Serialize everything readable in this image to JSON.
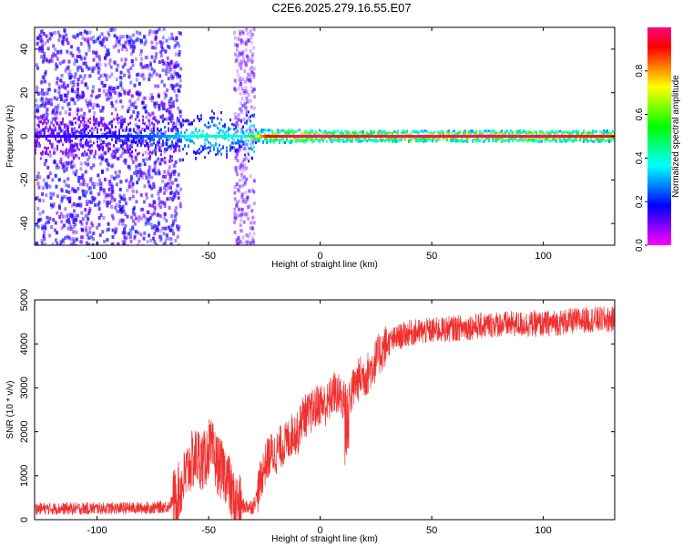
{
  "title": "C2E6.2025.279.16.55.E07",
  "chart_data": [
    {
      "type": "heatmap",
      "xlabel": "Height of straight line (km)",
      "ylabel": "Frequency (Hz)",
      "xlim": [
        -128,
        132
      ],
      "ylim": [
        -50,
        50
      ],
      "xticks": [
        -100,
        -50,
        0,
        50,
        100
      ],
      "yticks": [
        -40,
        -20,
        0,
        20,
        40
      ],
      "colorbar": {
        "label": "Normalized spectral amplitude",
        "range": [
          0.0,
          1.0
        ],
        "ticks": [
          0.0,
          0.2,
          0.4,
          0.6,
          0.8
        ],
        "colormap": [
          "#ff00ff",
          "#7f00ff",
          "#0000ff",
          "#0080ff",
          "#00ffff",
          "#00ff80",
          "#00ff00",
          "#80ff00",
          "#ffff00",
          "#ff8000",
          "#ff0000",
          "#ff0080"
        ]
      },
      "regions": [
        {
          "x": [
            -128,
            -65
          ],
          "description_level": 0.1
        },
        {
          "x": [
            -65,
            -30
          ],
          "description_level": 0.45
        },
        {
          "x": [
            -30,
            132
          ],
          "description_level": 0.9
        }
      ],
      "ridge_amplitude": [
        {
          "x": -120,
          "amp": 0.15
        },
        {
          "x": -100,
          "amp": 0.2
        },
        {
          "x": -80,
          "amp": 0.25
        },
        {
          "x": -65,
          "amp": 0.35
        },
        {
          "x": -55,
          "amp": 0.45
        },
        {
          "x": -45,
          "amp": 0.45
        },
        {
          "x": -35,
          "amp": 0.4
        },
        {
          "x": -25,
          "amp": 0.85
        },
        {
          "x": -15,
          "amp": 0.95
        },
        {
          "x": 0,
          "amp": 0.95
        },
        {
          "x": 10,
          "amp": 0.9
        },
        {
          "x": 30,
          "amp": 0.95
        },
        {
          "x": 60,
          "amp": 0.95
        },
        {
          "x": 100,
          "amp": 0.95
        },
        {
          "x": 130,
          "amp": 0.9
        }
      ]
    },
    {
      "type": "line",
      "xlabel": "Height of straight line (km)",
      "ylabel": "SNR (10 * v/v)",
      "xlim": [
        -128,
        132
      ],
      "ylim": [
        0,
        5000
      ],
      "xticks": [
        -100,
        -50,
        0,
        50,
        100
      ],
      "yticks": [
        0,
        1000,
        2000,
        3000,
        4000,
        5000
      ],
      "color": "#f03030",
      "series": [
        {
          "x": [
            -128,
            -110,
            -90,
            -75,
            -68,
            -63,
            -58,
            -55,
            -52,
            -50,
            -48,
            -45,
            -42,
            -39,
            -36,
            -33,
            -30,
            -28,
            -26,
            -24,
            -22,
            -20,
            -18,
            -15,
            -12,
            -10,
            -8,
            -5,
            -2,
            0,
            3,
            6,
            9,
            12,
            15,
            18,
            21,
            24,
            27,
            30,
            35,
            40,
            50,
            60,
            70,
            80,
            90,
            100,
            110,
            120,
            132
          ],
          "values": [
            250,
            250,
            260,
            270,
            300,
            650,
            1300,
            1450,
            1300,
            1650,
            1500,
            1150,
            1050,
            450,
            320,
            300,
            300,
            600,
            1050,
            1350,
            1500,
            1500,
            1650,
            1750,
            2000,
            1950,
            2350,
            2400,
            2550,
            2650,
            2600,
            2900,
            2800,
            2650,
            3000,
            3250,
            3300,
            3550,
            3800,
            4000,
            4150,
            4250,
            4300,
            4350,
            4400,
            4450,
            4450,
            4450,
            4500,
            4550,
            4550
          ]
        }
      ]
    }
  ]
}
